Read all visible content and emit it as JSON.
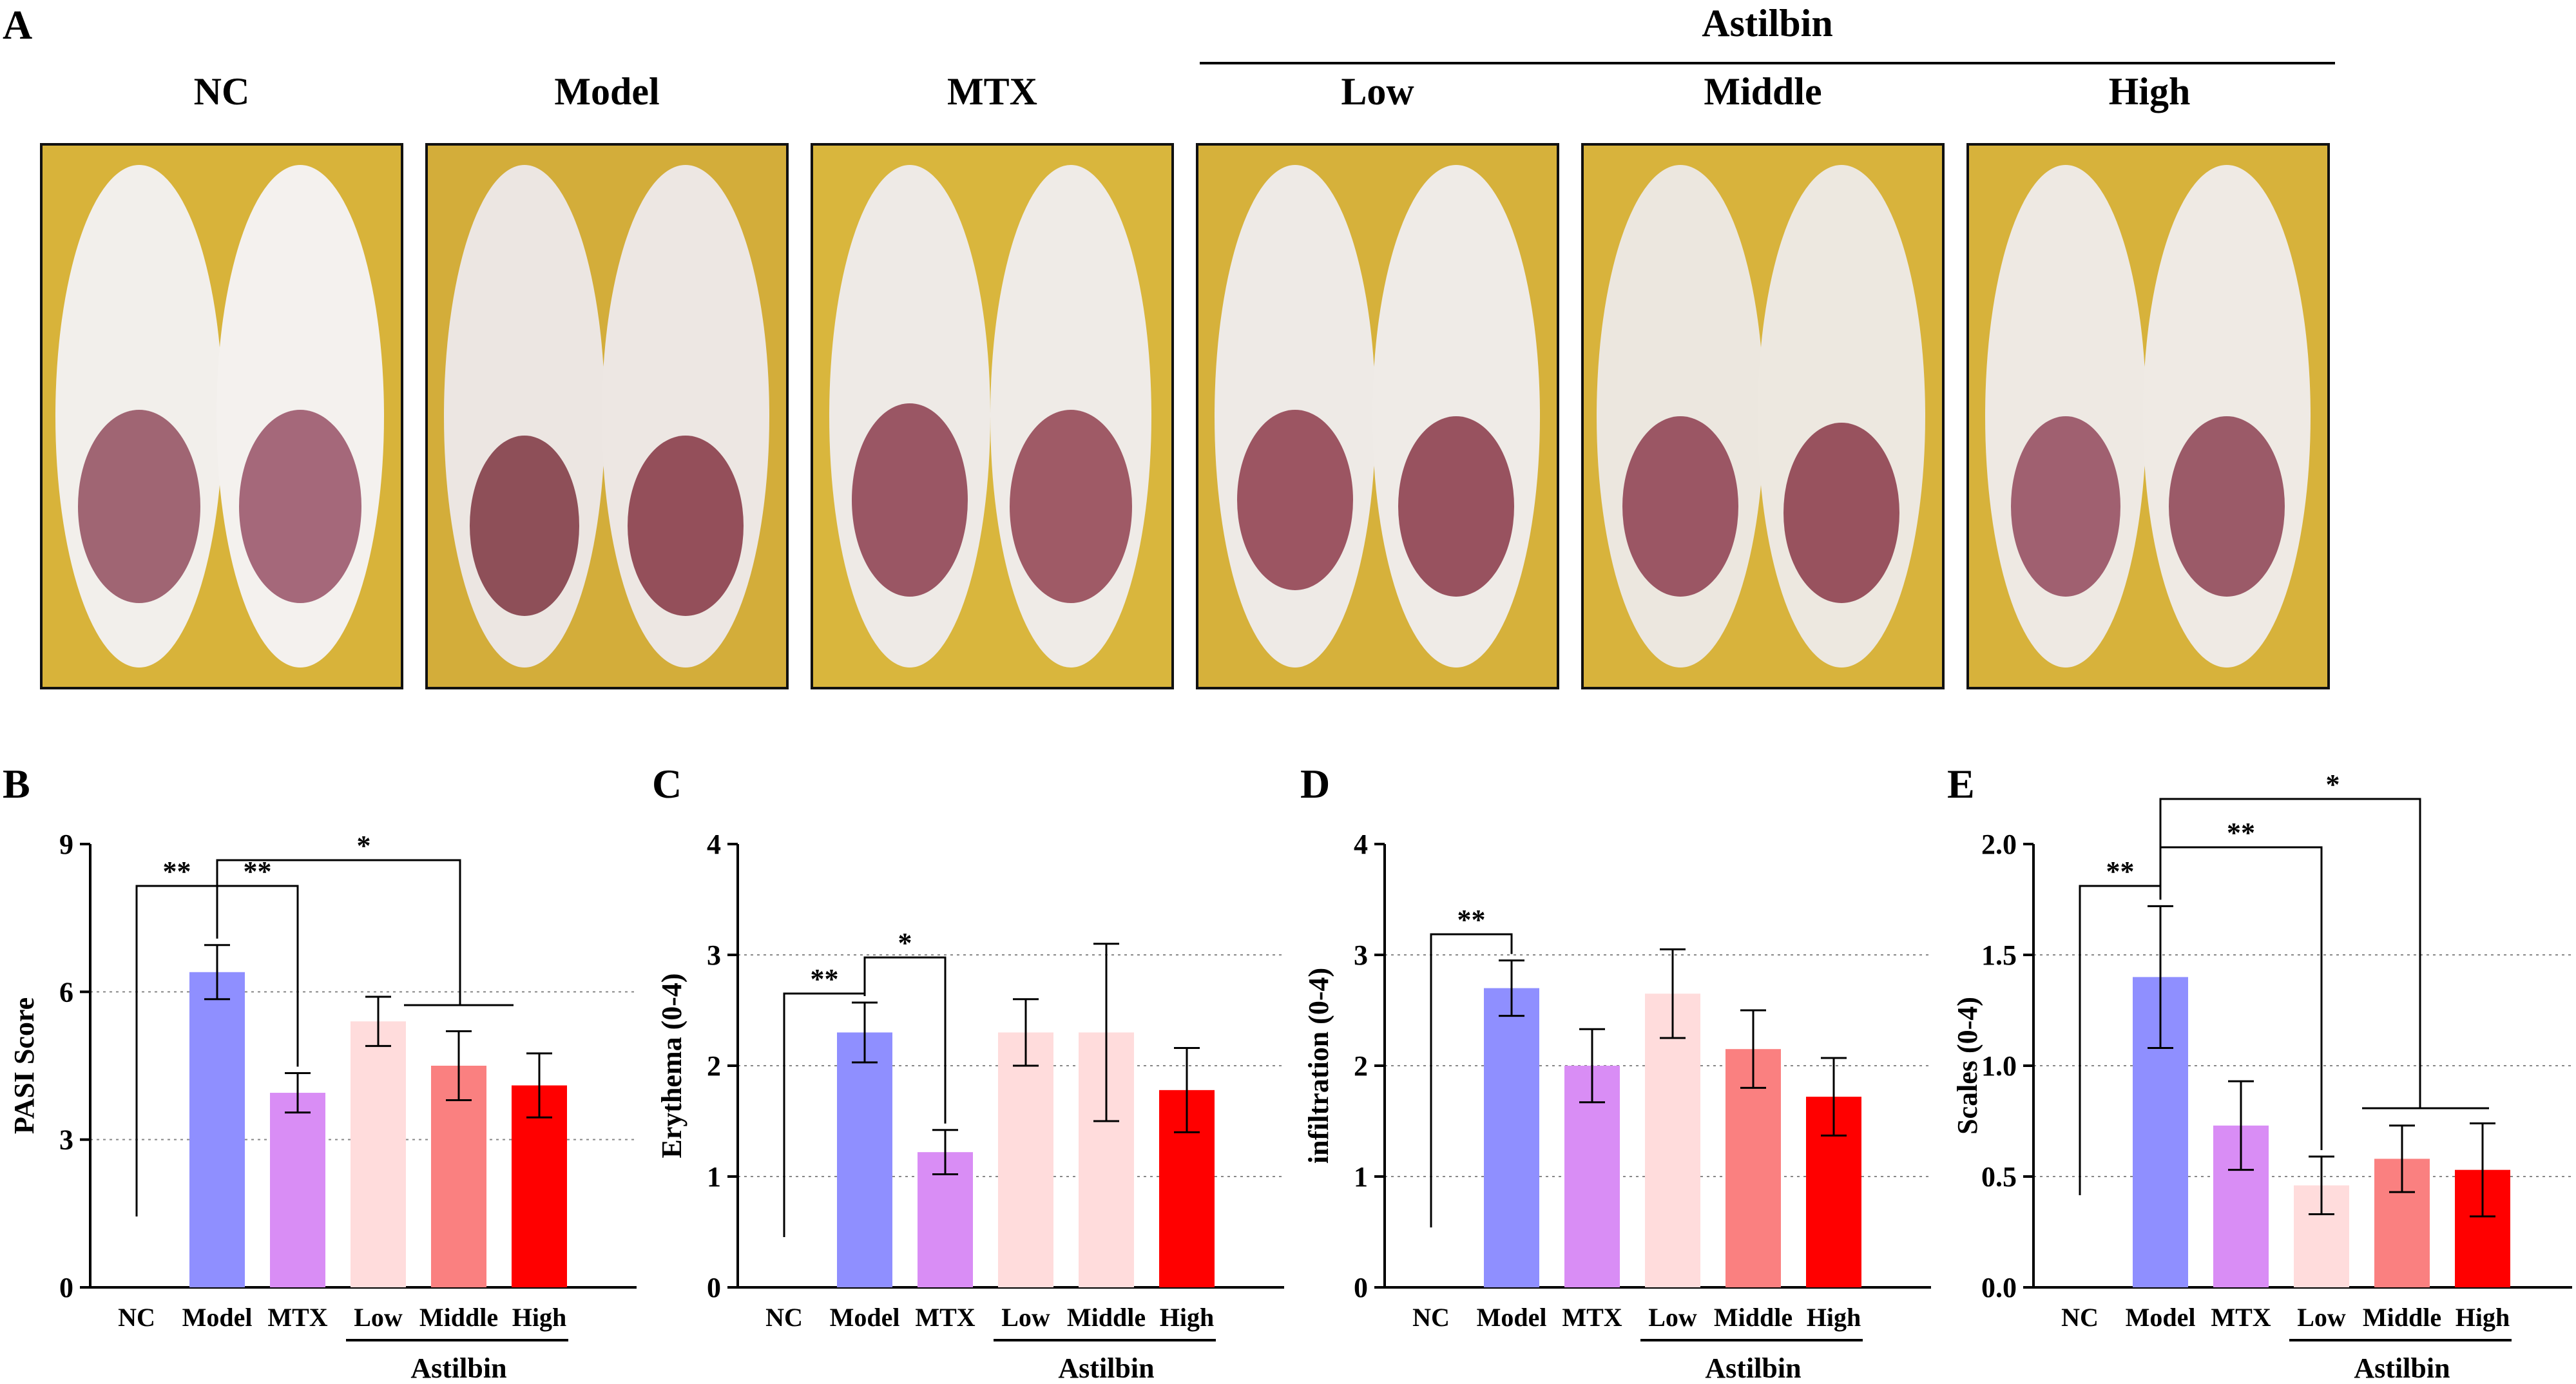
{
  "figure": {
    "panel_a": {
      "letter": "A",
      "bracket_label": "Astilbin",
      "groups": [
        "NC",
        "Model",
        "MTX",
        "Low",
        "Middle",
        "High"
      ],
      "colors": {
        "fur": "#efebe7",
        "lesion": "#9a5a66",
        "background": "#d8b33a"
      }
    }
  },
  "chart_data": [
    {
      "panel": "B",
      "type": "bar",
      "ylabel": "PASI Score",
      "ylim": [
        0,
        9
      ],
      "yticks": [
        "0",
        "3",
        "6",
        "9"
      ],
      "ytick_values": [
        0,
        3,
        6,
        9
      ],
      "gridlines": [
        3,
        6
      ],
      "categories": [
        "NC",
        "Model",
        "MTX",
        "Low",
        "Middle",
        "High"
      ],
      "values": [
        0,
        6.4,
        3.95,
        5.4,
        4.5,
        4.1
      ],
      "errors": [
        0,
        0.55,
        0.4,
        0.5,
        0.7,
        0.65
      ],
      "colors": [
        "#ffffff",
        "#8f8fff",
        "#d98df5",
        "#ffdcdc",
        "#fa8080",
        "#ff0000"
      ],
      "group_label": "Astilbin",
      "significance": [
        "**",
        "**",
        "*"
      ]
    },
    {
      "panel": "C",
      "type": "bar",
      "ylabel": "Erythema (0-4)",
      "ylim": [
        0,
        4
      ],
      "yticks": [
        "0",
        "1",
        "2",
        "3",
        "4"
      ],
      "ytick_values": [
        0,
        1,
        2,
        3,
        4
      ],
      "gridlines": [
        1,
        2,
        3
      ],
      "categories": [
        "NC",
        "Model",
        "MTX",
        "Low",
        "Middle",
        "High"
      ],
      "values": [
        0,
        2.3,
        1.22,
        2.3,
        2.3,
        1.78
      ],
      "errors": [
        0,
        0.27,
        0.2,
        0.3,
        0.8,
        0.38
      ],
      "colors": [
        "#ffffff",
        "#8f8fff",
        "#d98df5",
        "#ffdcdc",
        "#ffdcdc",
        "#ff0000"
      ],
      "group_label": "Astilbin",
      "significance": [
        "**",
        "*"
      ]
    },
    {
      "panel": "D",
      "type": "bar",
      "ylabel": "infiltration (0-4)",
      "ylim": [
        0,
        4
      ],
      "yticks": [
        "0",
        "1",
        "2",
        "3",
        "4"
      ],
      "ytick_values": [
        0,
        1,
        2,
        3,
        4
      ],
      "gridlines": [
        1,
        2,
        3
      ],
      "categories": [
        "NC",
        "Model",
        "MTX",
        "Low",
        "Middle",
        "High"
      ],
      "values": [
        0,
        2.7,
        2.0,
        2.65,
        2.15,
        1.72
      ],
      "errors": [
        0,
        0.25,
        0.33,
        0.4,
        0.35,
        0.35
      ],
      "colors": [
        "#ffffff",
        "#8f8fff",
        "#d98df5",
        "#ffdcdc",
        "#fa8080",
        "#ff0000"
      ],
      "group_label": "Astilbin",
      "significance": [
        "**"
      ]
    },
    {
      "panel": "E",
      "type": "bar",
      "ylabel": "Scales (0-4)",
      "ylim": [
        0,
        2.0
      ],
      "yticks": [
        "0.0",
        "0.5",
        "1.0",
        "1.5",
        "2.0"
      ],
      "ytick_values": [
        0,
        0.5,
        1.0,
        1.5,
        2.0
      ],
      "gridlines": [
        0.5,
        1.0,
        1.5
      ],
      "categories": [
        "NC",
        "Model",
        "MTX",
        "Low",
        "Middle",
        "High"
      ],
      "values": [
        0,
        1.4,
        0.73,
        0.46,
        0.58,
        0.53
      ],
      "errors": [
        0,
        0.32,
        0.2,
        0.13,
        0.15,
        0.21
      ],
      "colors": [
        "#ffffff",
        "#8f8fff",
        "#d98df5",
        "#ffdcdc",
        "#fa8080",
        "#ff0000"
      ],
      "group_label": "Astilbin",
      "significance": [
        "**",
        "**",
        "*"
      ]
    }
  ]
}
